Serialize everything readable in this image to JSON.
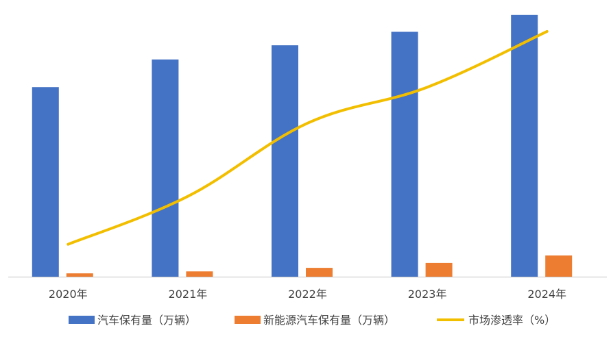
{
  "chart_data": {
    "type": "bar",
    "categories": [
      "2020年",
      "2021年",
      "2022年",
      "2023年",
      "2024年"
    ],
    "series": [
      {
        "name": "汽车保有量（万辆）",
        "type": "bar",
        "color": "#4472C4",
        "values": [
          28100,
          32200,
          34300,
          36300,
          38800
        ]
      },
      {
        "name": "新能源汽车保有量（万辆）",
        "type": "bar",
        "color": "#ED7D31",
        "values": [
          492,
          784,
          1310,
          2041,
          3140
        ]
      },
      {
        "name": "市场渗透率（%）",
        "type": "line",
        "color": "#F2BE00",
        "values": [
          5.4,
          13.4,
          25.6,
          31.6,
          40.9
        ]
      }
    ],
    "ylim_bar": [
      0,
      40000
    ],
    "ylim_line": [
      0,
      45
    ],
    "grid": false,
    "legend": "bottom"
  }
}
